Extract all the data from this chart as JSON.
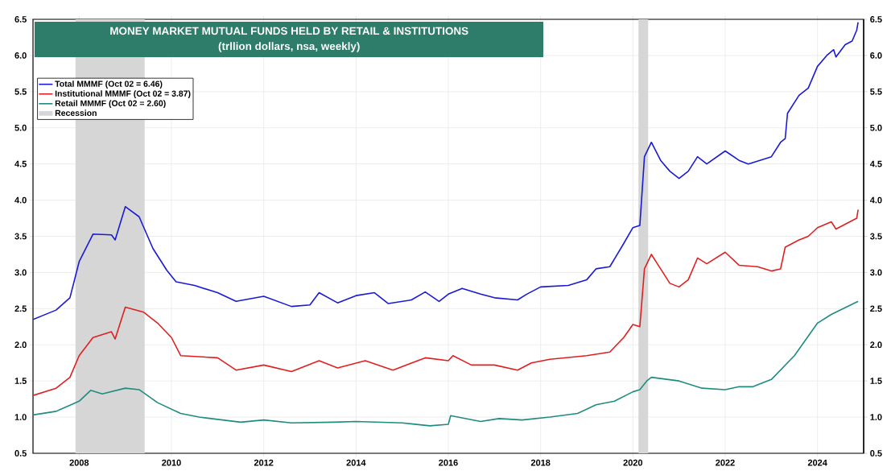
{
  "chart_data": {
    "type": "line",
    "title": "MONEY MARKET MUTUAL FUNDS HELD BY RETAIL & INSTITUTIONS",
    "subtitle": "(trllion dollars, nsa, weekly)",
    "xlim": [
      2007,
      2025
    ],
    "xticks": [
      2008,
      2010,
      2012,
      2014,
      2016,
      2018,
      2020,
      2022,
      2024
    ],
    "ylim": [
      0.5,
      6.5
    ],
    "yticks": [
      {
        "value": 0.5,
        "label": "0.5"
      },
      {
        "value": 1,
        "label": "1.0"
      },
      {
        "value": 1.5,
        "label": "1.5"
      },
      {
        "value": 2,
        "label": "2.0"
      },
      {
        "value": 2.5,
        "label": "2.5"
      },
      {
        "value": 3,
        "label": "3.0"
      },
      {
        "value": 3.5,
        "label": "3.5"
      },
      {
        "value": 4,
        "label": "4.0"
      },
      {
        "value": 4.5,
        "label": "4.5"
      },
      {
        "value": 5,
        "label": "5.0"
      },
      {
        "value": 5.5,
        "label": "5.5"
      },
      {
        "value": 6,
        "label": "6.0"
      },
      {
        "value": 6.5,
        "label": "6.5"
      }
    ],
    "y2lim": [
      0.5,
      6.5
    ],
    "y2ticks": [
      {
        "value": 0.5,
        "label": "0.5"
      },
      {
        "value": 1,
        "label": "1.0"
      },
      {
        "value": 1.5,
        "label": "1.5"
      },
      {
        "value": 2,
        "label": "2.0"
      },
      {
        "value": 2.5,
        "label": "2.5"
      },
      {
        "value": 3,
        "label": "3.0"
      },
      {
        "value": 3.5,
        "label": "3.5"
      },
      {
        "value": 4,
        "label": "4.0"
      },
      {
        "value": 4.5,
        "label": "4.5"
      },
      {
        "value": 5,
        "label": "5.0"
      },
      {
        "value": 5.5,
        "label": "5.5"
      },
      {
        "value": 6,
        "label": "6.0"
      },
      {
        "value": 6.5,
        "label": "6.5"
      }
    ],
    "grid": true,
    "legend": "top left",
    "marker": "none",
    "line_style": "solid",
    "bands": [
      {
        "axis": "x",
        "from": 2007.92,
        "to": 2009.42,
        "label": "Recession",
        "color": "#d6d6d6"
      },
      {
        "axis": "x",
        "from": 2020.12,
        "to": 2020.33,
        "color": "#d6d6d6"
      }
    ],
    "series": [
      {
        "name": "Total MMMF (Oct 02 = 6.46)",
        "color": "#1a1ad6",
        "x": [
          2007.0,
          2007.5,
          2007.8,
          2008.0,
          2008.3,
          2008.7,
          2008.78,
          2009.0,
          2009.3,
          2009.6,
          2009.9,
          2010.1,
          2010.5,
          2011.0,
          2011.4,
          2012.0,
          2012.6,
          2013.0,
          2013.2,
          2013.6,
          2014.0,
          2014.4,
          2014.7,
          2015.2,
          2015.5,
          2015.8,
          2016.0,
          2016.3,
          2016.7,
          2017.0,
          2017.5,
          2017.7,
          2018.0,
          2018.6,
          2019.0,
          2019.2,
          2019.5,
          2019.8,
          2020.0,
          2020.15,
          2020.25,
          2020.4,
          2020.6,
          2020.8,
          2021.0,
          2021.2,
          2021.4,
          2021.6,
          2022.0,
          2022.3,
          2022.5,
          2023.0,
          2023.2,
          2023.3,
          2023.35,
          2023.6,
          2023.8,
          2024.0,
          2024.2,
          2024.35,
          2024.4,
          2024.6,
          2024.75,
          2024.85,
          2024.88
        ],
        "values": [
          2.35,
          2.48,
          2.65,
          3.15,
          3.53,
          3.52,
          3.45,
          3.91,
          3.77,
          3.33,
          3.03,
          2.87,
          2.82,
          2.72,
          2.6,
          2.67,
          2.53,
          2.55,
          2.72,
          2.58,
          2.68,
          2.72,
          2.57,
          2.62,
          2.73,
          2.6,
          2.7,
          2.78,
          2.7,
          2.65,
          2.62,
          2.7,
          2.8,
          2.82,
          2.9,
          3.05,
          3.08,
          3.4,
          3.62,
          3.65,
          4.6,
          4.8,
          4.55,
          4.4,
          4.3,
          4.4,
          4.6,
          4.5,
          4.68,
          4.55,
          4.5,
          4.6,
          4.8,
          4.85,
          5.2,
          5.45,
          5.55,
          5.85,
          6.0,
          6.08,
          5.98,
          6.15,
          6.2,
          6.35,
          6.46
        ]
      },
      {
        "name": "Institutional MMMF (Oct 02 = 3.87)",
        "color": "#e02020",
        "x": [
          2007.0,
          2007.5,
          2007.8,
          2008.0,
          2008.3,
          2008.7,
          2008.78,
          2009.0,
          2009.4,
          2009.7,
          2010.0,
          2010.2,
          2011.0,
          2011.4,
          2012.0,
          2012.6,
          2013.2,
          2013.6,
          2014.2,
          2014.8,
          2015.5,
          2016.0,
          2016.1,
          2016.5,
          2017.0,
          2017.5,
          2017.8,
          2018.2,
          2019.0,
          2019.5,
          2019.8,
          2020.0,
          2020.15,
          2020.25,
          2020.4,
          2020.6,
          2020.8,
          2021.0,
          2021.2,
          2021.4,
          2021.6,
          2022.0,
          2022.3,
          2022.7,
          2023.0,
          2023.2,
          2023.3,
          2023.6,
          2023.8,
          2024.0,
          2024.3,
          2024.4,
          2024.7,
          2024.85,
          2024.88
        ],
        "values": [
          1.3,
          1.4,
          1.55,
          1.85,
          2.1,
          2.18,
          2.08,
          2.52,
          2.45,
          2.3,
          2.1,
          1.85,
          1.82,
          1.65,
          1.72,
          1.63,
          1.78,
          1.68,
          1.78,
          1.65,
          1.82,
          1.78,
          1.85,
          1.72,
          1.72,
          1.65,
          1.75,
          1.8,
          1.85,
          1.9,
          2.1,
          2.28,
          2.25,
          3.05,
          3.25,
          3.05,
          2.85,
          2.8,
          2.9,
          3.2,
          3.12,
          3.28,
          3.1,
          3.08,
          3.02,
          3.05,
          3.35,
          3.45,
          3.5,
          3.62,
          3.7,
          3.6,
          3.7,
          3.75,
          3.87
        ]
      },
      {
        "name": "Retail MMMF (Oct 02 = 2.60)",
        "color": "#1f8c80",
        "x": [
          2007.0,
          2007.5,
          2008.0,
          2008.25,
          2008.5,
          2009.0,
          2009.3,
          2009.7,
          2010.2,
          2010.6,
          2011.5,
          2012.0,
          2012.6,
          2013.5,
          2014.0,
          2015.0,
          2015.6,
          2016.0,
          2016.05,
          2016.7,
          2017.1,
          2017.6,
          2018.2,
          2018.8,
          2019.2,
          2019.6,
          2020.0,
          2020.15,
          2020.3,
          2020.4,
          2021.0,
          2021.5,
          2022.0,
          2022.3,
          2022.6,
          2023.0,
          2023.5,
          2024.0,
          2024.3,
          2024.88
        ],
        "values": [
          1.03,
          1.08,
          1.22,
          1.37,
          1.32,
          1.4,
          1.38,
          1.2,
          1.05,
          1.0,
          0.93,
          0.96,
          0.92,
          0.93,
          0.94,
          0.92,
          0.88,
          0.9,
          1.02,
          0.94,
          0.98,
          0.96,
          1.0,
          1.05,
          1.17,
          1.22,
          1.35,
          1.38,
          1.5,
          1.55,
          1.5,
          1.4,
          1.38,
          1.42,
          1.42,
          1.52,
          1.85,
          2.3,
          2.42,
          2.6
        ]
      }
    ]
  }
}
